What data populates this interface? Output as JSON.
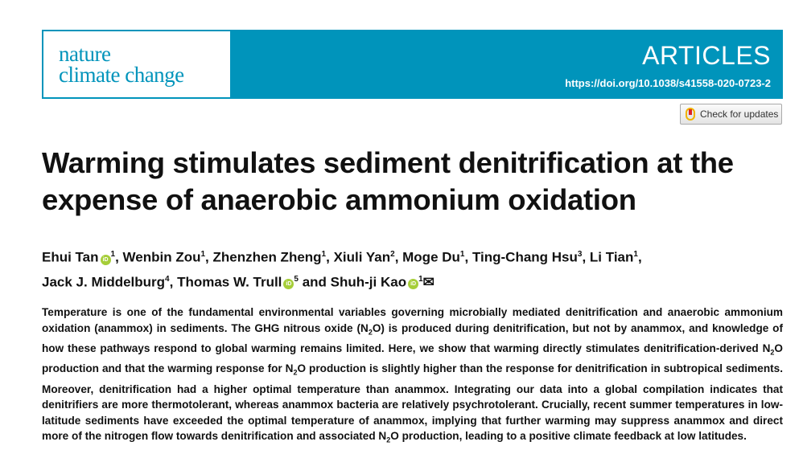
{
  "journal": {
    "logo_line1": "nature",
    "logo_line2": "climate change",
    "section": "ARTICLES",
    "doi": "https://doi.org/10.1038/s41558-020-0723-2",
    "brand_color": "#0094bb"
  },
  "check_updates": {
    "label": "Check for updates",
    "icon": "crossmark-icon"
  },
  "title": "Warming stimulates sediment denitrification at the expense of anaerobic ammonium oxidation",
  "authors": [
    {
      "name": "Ehui Tan",
      "orcid": true,
      "aff": "1",
      "sep": ", "
    },
    {
      "name": "Wenbin Zou",
      "aff": "1",
      "sep": ", "
    },
    {
      "name": "Zhenzhen Zheng",
      "aff": "1",
      "sep": ", "
    },
    {
      "name": "Xiuli Yan",
      "aff": "2",
      "sep": ", "
    },
    {
      "name": "Moge Du",
      "aff": "1",
      "sep": ", "
    },
    {
      "name": "Ting-Chang Hsu",
      "aff": "3",
      "sep": ", "
    },
    {
      "name": "Li Tian",
      "aff": "1",
      "sep": ", "
    },
    {
      "name": "Jack J. Middelburg",
      "aff": "4",
      "sep": ", "
    },
    {
      "name": "Thomas W. Trull",
      "orcid": true,
      "aff": "5",
      "sep": " and "
    },
    {
      "name": "Shuh-ji Kao",
      "orcid": true,
      "aff": "1",
      "email": "✉",
      "sep": ""
    }
  ],
  "abstract": [
    {
      "t": "Temperature is one of the fundamental environmental variables governing microbially mediated denitrification and anaerobic ammonium oxidation (anammox) in sediments. The GHG nitrous oxide (N"
    },
    {
      "sub": "2"
    },
    {
      "t": "O) is produced during denitrification, but not by anammox, and knowledge of how these pathways respond to global warming remains limited. Here, we show that warming directly stimulates denitrification-derived N"
    },
    {
      "sub": "2"
    },
    {
      "t": "O production and that the warming response for N"
    },
    {
      "sub": "2"
    },
    {
      "t": "O production is slightly higher than the response for denitrification in subtropical sediments. Moreover, denitrification had a higher optimal temperature than anammox. Integrating our data into a global compilation indicates that denitrifiers are more thermotolerant, whereas anammox bacteria are relatively psychrotolerant. Crucially, recent summer temperatures in low-latitude sediments have exceeded the optimal temperature of anammox, implying that further warming may suppress anammox and direct more of the nitrogen flow towards denitrification and associated N"
    },
    {
      "sub": "2"
    },
    {
      "t": "O production, leading to a positive climate feedback at low latitudes."
    }
  ]
}
